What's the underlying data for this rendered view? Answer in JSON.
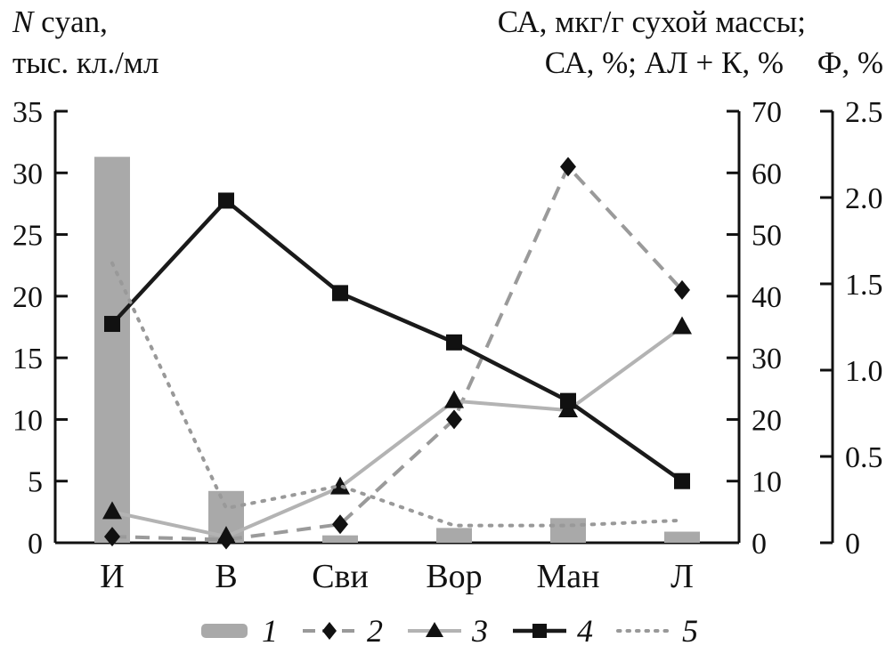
{
  "headers": {
    "left_line1_italic": "N",
    "left_line1_rest": " cyan,",
    "left_line2": "тыс. кл./мл",
    "right_line1": "СА, мкг/г сухой массы;",
    "right_line2": "СА, %; АЛ + К, %",
    "far_right": "Ф, %"
  },
  "colors": {
    "axis": "#111111",
    "text": "#111111"
  },
  "legend": {
    "items": [
      {
        "label": "1"
      },
      {
        "label": "2"
      },
      {
        "label": "3"
      },
      {
        "label": "4"
      },
      {
        "label": "5"
      }
    ]
  },
  "chart_data": {
    "type": "combo",
    "categories": [
      "И",
      "В",
      "Сви",
      "Вор",
      "Ман",
      "Л"
    ],
    "axes": {
      "left": {
        "label": "N cyan, тыс. кл./мл",
        "min": 0,
        "max": 35,
        "step": 5
      },
      "right1": {
        "label": "СА, мкг/г сухой массы; СА, %; АЛ + К, %",
        "min": 0,
        "max": 70,
        "step": 10
      },
      "right2": {
        "label": "Ф, %",
        "min": 0,
        "max": 2.5,
        "step": 0.5
      }
    },
    "grid": false,
    "legend_position": "bottom",
    "series": [
      {
        "name": "1",
        "type": "bar",
        "axis": "left",
        "style": "solid",
        "marker": "none",
        "color": "#a9a9a9",
        "values": [
          31.3,
          4.2,
          0.6,
          1.2,
          2.0,
          0.9
        ]
      },
      {
        "name": "2",
        "type": "line",
        "axis": "right1",
        "style": "dashed",
        "marker": "diamond",
        "color": "#9a9a9a",
        "marker_color": "#111111",
        "values": [
          1.0,
          0.5,
          3.0,
          20.0,
          61.0,
          41.0
        ]
      },
      {
        "name": "3",
        "type": "line",
        "axis": "right1",
        "style": "solid",
        "marker": "triangle",
        "color": "#b3b3b3",
        "marker_color": "#111111",
        "values": [
          5.0,
          1.0,
          9.0,
          23.0,
          21.5,
          35.0
        ]
      },
      {
        "name": "4",
        "type": "line",
        "axis": "right1",
        "style": "solid",
        "marker": "square",
        "color": "#1a1a1a",
        "marker_color": "#111111",
        "values": [
          35.5,
          55.5,
          40.5,
          32.5,
          23.0,
          10.0
        ]
      },
      {
        "name": "5",
        "type": "line",
        "axis": "right2",
        "style": "dotted",
        "marker": "none",
        "color": "#999999",
        "values": [
          1.62,
          0.2,
          0.33,
          0.1,
          0.1,
          0.13
        ]
      }
    ]
  }
}
